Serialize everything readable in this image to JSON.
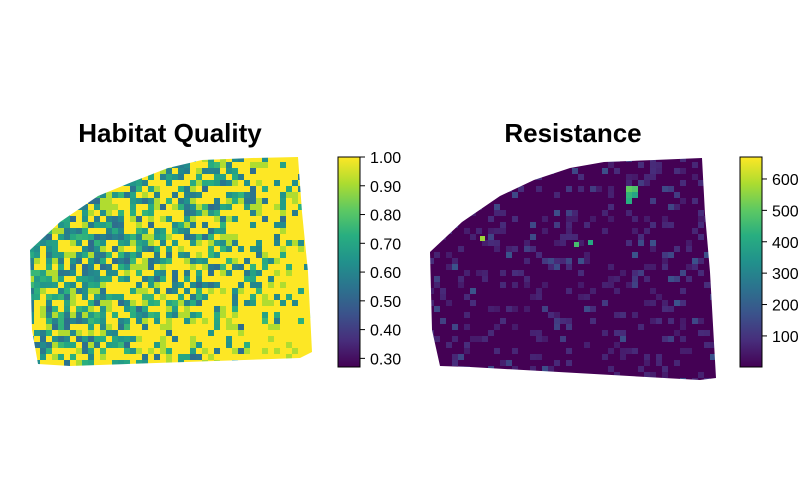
{
  "chart_data": [
    {
      "type": "heatmap",
      "title": "Habitat Quality",
      "colorscale": "viridis",
      "legend": {
        "position": "right",
        "min": 0.27,
        "max": 1.0,
        "ticks": [
          1.0,
          0.9,
          0.8,
          0.7,
          0.6,
          0.5,
          0.4,
          0.3
        ],
        "tick_labels": [
          "1.00",
          "0.90",
          "0.80",
          "0.70",
          "0.60",
          "0.50",
          "0.40",
          "0.30"
        ]
      }
    },
    {
      "type": "heatmap",
      "title": "Resistance",
      "colorscale": "viridis",
      "legend": {
        "position": "right",
        "min": 1,
        "max": 670,
        "ticks": [
          600,
          500,
          400,
          300,
          200,
          100
        ],
        "tick_labels": [
          "600",
          "500",
          "400",
          "300",
          "200",
          "100"
        ]
      }
    }
  ]
}
